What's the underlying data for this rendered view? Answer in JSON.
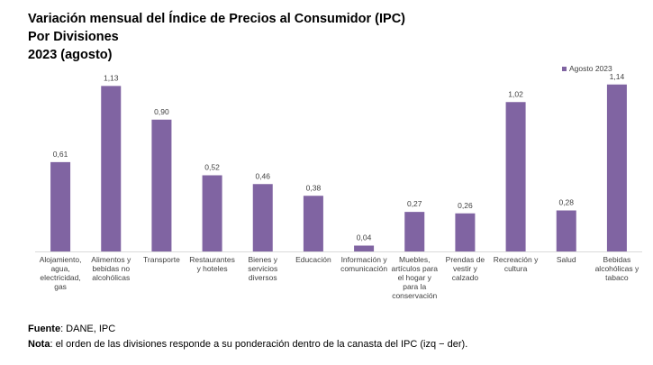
{
  "header": {
    "title": "Variación mensual del Índice de Precios al Consumidor (IPC)",
    "subtitle": "Por Divisiones",
    "period": "2023 (agosto)"
  },
  "chart_data": {
    "type": "bar",
    "series": [
      {
        "name": "Agosto 2023",
        "color": "#8064A2",
        "values": [
          0.61,
          1.13,
          0.9,
          0.52,
          0.46,
          0.38,
          0.04,
          0.27,
          0.26,
          1.02,
          0.28,
          1.14
        ],
        "labels": [
          "0,61",
          "1,13",
          "0,90",
          "0,52",
          "0,46",
          "0,38",
          "0,04",
          "0,27",
          "0,26",
          "1,02",
          "0,28",
          "1,14"
        ]
      }
    ],
    "categories": [
      [
        "Alojamiento,",
        "agua,",
        "electricidad,",
        "gas"
      ],
      [
        "Alimentos y",
        "bebidas no",
        "alcohólicas"
      ],
      [
        "Transporte"
      ],
      [
        "Restaurantes",
        "y hoteles"
      ],
      [
        "Bienes y",
        "servicios",
        "diversos"
      ],
      [
        "Educación"
      ],
      [
        "Información y",
        "comunicación"
      ],
      [
        "Muebles,",
        "artículos para",
        "el hogar y",
        "para la",
        "conservación"
      ],
      [
        "Prendas de",
        "vestir y",
        "calzado"
      ],
      [
        "Recreación y",
        "cultura"
      ],
      [
        "Salud"
      ],
      [
        "Bebidas",
        "alcohólicas y",
        "tabaco"
      ]
    ],
    "ylim": [
      0,
      1.2
    ],
    "grid": false,
    "legend_position": "top-right"
  },
  "footer": {
    "source_label": "Fuente",
    "source_text": ": DANE, IPC",
    "note_label": "Nota",
    "note_text": ": el orden de las divisiones responde a su ponderación dentro de la canasta del IPC (izq − der)."
  }
}
